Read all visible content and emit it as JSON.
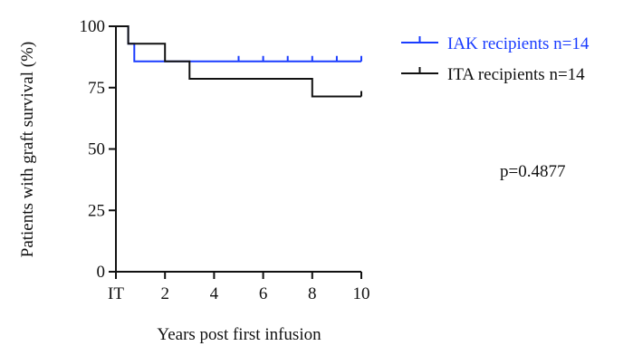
{
  "chart_data": {
    "type": "line",
    "step": true,
    "title": "",
    "xlabel": "Years post first infusion",
    "ylabel": "Patients with graft survival (%)",
    "xlim": [
      0,
      10
    ],
    "ylim": [
      0,
      100
    ],
    "x_ticks": [
      {
        "value": 0,
        "label": "IT"
      },
      {
        "value": 2,
        "label": "2"
      },
      {
        "value": 4,
        "label": "4"
      },
      {
        "value": 6,
        "label": "6"
      },
      {
        "value": 8,
        "label": "8"
      },
      {
        "value": 10,
        "label": "10"
      }
    ],
    "y_ticks": [
      0,
      25,
      50,
      75,
      100
    ],
    "grid": false,
    "legend_position": "top-right",
    "series": [
      {
        "name": "IAK recipients n=14",
        "color": "#1a3cff",
        "points": [
          [
            0,
            100
          ],
          [
            0.5,
            100
          ],
          [
            0.5,
            92.9
          ],
          [
            0.75,
            92.9
          ],
          [
            0.75,
            85.7
          ],
          [
            10,
            85.7
          ]
        ],
        "censor_x": [
          5,
          6,
          7,
          8,
          9,
          10
        ]
      },
      {
        "name": "ITA recipients n=14",
        "color": "#111111",
        "points": [
          [
            0,
            100
          ],
          [
            0.5,
            100
          ],
          [
            0.5,
            92.9
          ],
          [
            2,
            92.9
          ],
          [
            2,
            85.7
          ],
          [
            3,
            85.7
          ],
          [
            3,
            78.6
          ],
          [
            8,
            78.6
          ],
          [
            8,
            71.4
          ],
          [
            10,
            71.4
          ]
        ],
        "censor_x": [
          10
        ]
      }
    ],
    "annotations": [
      {
        "text": "p=0.4877",
        "position": "right-middle"
      }
    ]
  }
}
